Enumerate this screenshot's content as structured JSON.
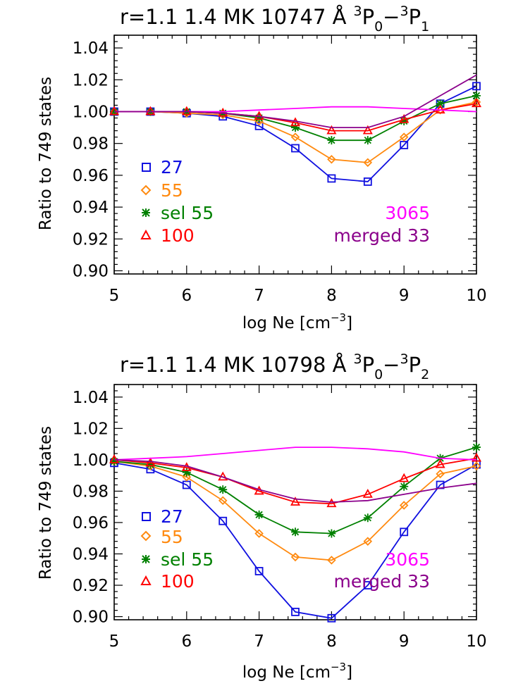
{
  "chart_data": [
    {
      "type": "line",
      "title": "r=1.1  1.4 MK 10747 Å",
      "transition": {
        "up_label": "3",
        "up_level": "P",
        "up_sub": "0",
        "dash": "−",
        "lo_label": "3",
        "lo_level": "P",
        "lo_sub": "1"
      },
      "xlabel": "log Ne [cm",
      "xlabel_sup": "−3",
      "xlabel_end": "]",
      "ylabel": "Ratio to 749 states",
      "xlim": [
        5,
        10
      ],
      "ylim": [
        0.898,
        1.048
      ],
      "xticks": [
        5,
        6,
        7,
        8,
        9,
        10
      ],
      "xtick_labels": [
        "5",
        "6",
        "7",
        "8",
        "9",
        "10"
      ],
      "yticks": [
        0.9,
        0.92,
        0.94,
        0.96,
        0.98,
        1.0,
        1.02,
        1.04
      ],
      "ytick_labels": [
        "0.90",
        "0.92",
        "0.94",
        "0.96",
        "0.98",
        "1.00",
        "1.02",
        "1.04"
      ],
      "x": [
        5,
        5.5,
        6,
        6.5,
        7,
        7.5,
        8,
        8.5,
        9,
        9.5,
        10
      ],
      "series": [
        {
          "name": "27",
          "color": "#1010e0",
          "marker": "square",
          "values": [
            1.0,
            1.0,
            0.999,
            0.997,
            0.991,
            0.977,
            0.958,
            0.956,
            0.979,
            1.005,
            1.016
          ]
        },
        {
          "name": "55",
          "color": "#ff8a10",
          "marker": "diamond",
          "values": [
            1.0,
            1.0,
            0.999,
            0.998,
            0.994,
            0.984,
            0.97,
            0.968,
            0.984,
            1.001,
            1.006
          ]
        },
        {
          "name": "sel 55",
          "color": "#008000",
          "marker": "star",
          "values": [
            1.0,
            1.0,
            1.0,
            0.999,
            0.996,
            0.99,
            0.982,
            0.982,
            0.994,
            1.005,
            1.01
          ]
        },
        {
          "name": "100",
          "color": "#ff0000",
          "marker": "triangle",
          "values": [
            1.0,
            1.0,
            1.0,
            0.999,
            0.997,
            0.993,
            0.988,
            0.988,
            0.995,
            1.001,
            1.005
          ]
        },
        {
          "name": "3065",
          "color": "#ff00ff",
          "marker": "none",
          "values": [
            1.0,
            1.0,
            1.0,
            1.0,
            1.001,
            1.002,
            1.003,
            1.003,
            1.002,
            1.001,
            1.0
          ]
        },
        {
          "name": "merged 33",
          "color": "#8b008b",
          "marker": "none",
          "values": [
            1.0,
            1.0,
            1.0,
            0.999,
            0.997,
            0.994,
            0.99,
            0.99,
            0.997,
            1.01,
            1.023
          ]
        }
      ]
    },
    {
      "type": "line",
      "title": "r=1.1  1.4 MK 10798 Å",
      "transition": {
        "up_label": "3",
        "up_level": "P",
        "up_sub": "0",
        "dash": "−",
        "lo_label": "3",
        "lo_level": "P",
        "lo_sub": "2"
      },
      "xlabel": "log Ne [cm",
      "xlabel_sup": "−3",
      "xlabel_end": "]",
      "ylabel": "Ratio to 749 states",
      "xlim": [
        5,
        10
      ],
      "ylim": [
        0.898,
        1.048
      ],
      "xticks": [
        5,
        6,
        7,
        8,
        9,
        10
      ],
      "xtick_labels": [
        "5",
        "6",
        "7",
        "8",
        "9",
        "10"
      ],
      "yticks": [
        0.9,
        0.92,
        0.94,
        0.96,
        0.98,
        1.0,
        1.02,
        1.04
      ],
      "ytick_labels": [
        "0.90",
        "0.92",
        "0.94",
        "0.96",
        "0.98",
        "1.00",
        "1.02",
        "1.04"
      ],
      "x": [
        5,
        5.5,
        6,
        6.5,
        7,
        7.5,
        8,
        8.5,
        9,
        9.5,
        10
      ],
      "series": [
        {
          "name": "27",
          "color": "#1010e0",
          "marker": "square",
          "values": [
            0.998,
            0.994,
            0.984,
            0.961,
            0.929,
            0.903,
            0.899,
            0.92,
            0.954,
            0.984,
            0.997
          ]
        },
        {
          "name": "55",
          "color": "#ff8a10",
          "marker": "diamond",
          "values": [
            0.999,
            0.996,
            0.989,
            0.974,
            0.953,
            0.938,
            0.936,
            0.948,
            0.971,
            0.991,
            0.996
          ]
        },
        {
          "name": "sel 55",
          "color": "#008000",
          "marker": "star",
          "values": [
            0.999,
            0.997,
            0.992,
            0.981,
            0.965,
            0.954,
            0.953,
            0.963,
            0.983,
            1.001,
            1.008
          ]
        },
        {
          "name": "100",
          "color": "#ff0000",
          "marker": "triangle",
          "values": [
            1.0,
            0.998,
            0.995,
            0.989,
            0.98,
            0.973,
            0.972,
            0.978,
            0.988,
            0.997,
            1.001
          ]
        },
        {
          "name": "3065",
          "color": "#ff00ff",
          "marker": "none",
          "values": [
            1.0,
            1.001,
            1.002,
            1.004,
            1.006,
            1.008,
            1.008,
            1.007,
            1.005,
            1.001,
            1.0
          ]
        },
        {
          "name": "merged 33",
          "color": "#8b008b",
          "marker": "none",
          "values": [
            1.0,
            0.999,
            0.996,
            0.989,
            0.981,
            0.975,
            0.973,
            0.974,
            0.978,
            0.982,
            0.985
          ]
        }
      ]
    }
  ]
}
